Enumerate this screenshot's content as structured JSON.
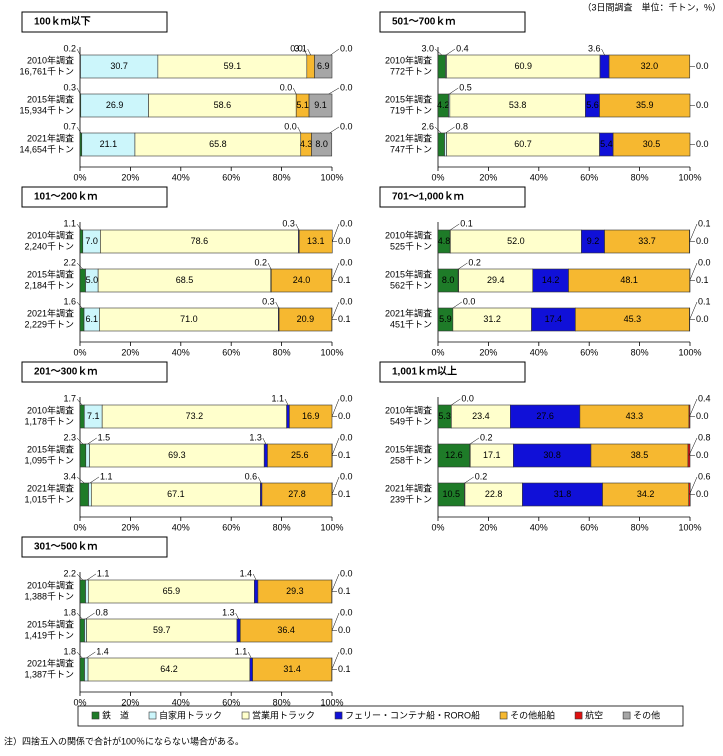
{
  "units_note": "（3日間調査　単位：千トン，%）",
  "footnote": "注）四捨五入の関係で合計が100％にならない場合がある。",
  "chart_data": [
    {
      "type": "bar",
      "horizontal": true,
      "stacked": true,
      "title": "100ｋｍ以下",
      "categories": [
        "2010年調査",
        "2015年調査",
        "2021年調査"
      ],
      "sublabels": [
        "16,761千トン",
        "15,934千トン",
        "14,654千トン"
      ],
      "xlim": [
        0,
        100
      ],
      "xticks": [
        {
          "value": 0,
          "label": "0%"
        },
        {
          "value": 20,
          "label": "20%"
        },
        {
          "value": 40,
          "label": "40%"
        },
        {
          "value": 60,
          "label": "60%"
        },
        {
          "value": 80,
          "label": "80%"
        },
        {
          "value": 100,
          "label": "100%"
        }
      ],
      "series": [
        {
          "name": "鉄　道",
          "color": "#1e7b28",
          "values": [
            0.2,
            0.3,
            0.7
          ],
          "value_labels": [
            "0.2",
            "0.3",
            "0.7"
          ]
        },
        {
          "name": "自家用トラック",
          "color": "#ccf6fb",
          "values": [
            30.7,
            26.9,
            21.1
          ],
          "value_labels": [
            "30.7",
            "26.9",
            "21.1"
          ]
        },
        {
          "name": "営業用トラック",
          "color": "#ffffcc",
          "values": [
            59.1,
            58.6,
            65.8
          ],
          "value_labels": [
            "59.1",
            "58.6",
            "65.8"
          ]
        },
        {
          "name": "フェリー・コンテナ船・RORO船",
          "color": "#1010d8",
          "values": [
            0.0,
            0.0,
            0.0
          ],
          "value_labels": [
            "0.0",
            "0.0",
            "0.0"
          ]
        },
        {
          "name": "その他船舶",
          "color": "#f6b830",
          "values": [
            3.1,
            5.1,
            4.3
          ],
          "value_labels": [
            "3.1",
            "5.1",
            "4.3"
          ]
        },
        {
          "name": "航空",
          "color": "#e01010",
          "values": [
            0.0,
            0.0,
            0.0
          ],
          "value_labels": [
            "0.0",
            "0.0",
            "0.0"
          ]
        },
        {
          "name": "その他",
          "color": "#a6a6a6",
          "values": [
            6.9,
            9.1,
            8.0
          ],
          "value_labels": [
            "6.9",
            "9.1",
            "8.0"
          ]
        }
      ]
    },
    {
      "type": "bar",
      "horizontal": true,
      "stacked": true,
      "title": "501～700ｋｍ",
      "categories": [
        "2010年調査",
        "2015年調査",
        "2021年調査"
      ],
      "sublabels": [
        "772千トン",
        "719千トン",
        "747千トン"
      ],
      "xlim": [
        0,
        100
      ],
      "xticks": [
        {
          "value": 0,
          "label": "0%"
        },
        {
          "value": 20,
          "label": "20%"
        },
        {
          "value": 40,
          "label": "40%"
        },
        {
          "value": 60,
          "label": "60%"
        },
        {
          "value": 80,
          "label": "80%"
        },
        {
          "value": 100,
          "label": "100%"
        }
      ],
      "series": [
        {
          "name": "鉄　道",
          "color": "#1e7b28",
          "values": [
            3.0,
            4.2,
            2.6
          ],
          "value_labels": [
            "3.0",
            "4.2",
            "2.6"
          ]
        },
        {
          "name": "自家用トラック",
          "color": "#ccf6fb",
          "values": [
            0.4,
            0.5,
            0.8
          ],
          "value_labels": [
            "0.4",
            "0.5",
            "0.8"
          ]
        },
        {
          "name": "営業用トラック",
          "color": "#ffffcc",
          "values": [
            60.9,
            53.8,
            60.7
          ],
          "value_labels": [
            "60.9",
            "53.8",
            "60.7"
          ]
        },
        {
          "name": "フェリー・コンテナ船・RORO船",
          "color": "#1010d8",
          "values": [
            3.6,
            5.6,
            5.4
          ],
          "value_labels": [
            "3.6",
            "5.6",
            "5.4"
          ]
        },
        {
          "name": "その他船舶",
          "color": "#f6b830",
          "values": [
            32.0,
            35.9,
            30.5
          ],
          "value_labels": [
            "32.0",
            "35.9",
            "30.5"
          ]
        },
        {
          "name": "その他",
          "color": "#a6a6a6",
          "values": [
            0.0,
            0.0,
            0.0
          ],
          "value_labels": [
            "0.0",
            "0.0",
            "0.0"
          ]
        }
      ]
    },
    {
      "type": "bar",
      "horizontal": true,
      "stacked": true,
      "title": "101～200ｋｍ",
      "categories": [
        "2010年調査",
        "2015年調査",
        "2021年調査"
      ],
      "sublabels": [
        "2,240千トン",
        "2,184千トン",
        "2,229千トン"
      ],
      "xlim": [
        0,
        100
      ],
      "xticks": [
        {
          "value": 0,
          "label": "0%"
        },
        {
          "value": 20,
          "label": "20%"
        },
        {
          "value": 40,
          "label": "40%"
        },
        {
          "value": 60,
          "label": "60%"
        },
        {
          "value": 80,
          "label": "80%"
        },
        {
          "value": 100,
          "label": "100%"
        }
      ],
      "series": [
        {
          "name": "鉄　道",
          "color": "#1e7b28",
          "values": [
            1.1,
            2.2,
            1.6
          ],
          "value_labels": [
            "1.1",
            "2.2",
            "1.6"
          ]
        },
        {
          "name": "自家用トラック",
          "color": "#ccf6fb",
          "values": [
            7.0,
            5.0,
            6.1
          ],
          "value_labels": [
            "7.0",
            "5.0",
            "6.1"
          ]
        },
        {
          "name": "営業用トラック",
          "color": "#ffffcc",
          "values": [
            78.6,
            68.5,
            71.0
          ],
          "value_labels": [
            "78.6",
            "68.5",
            "71.0"
          ]
        },
        {
          "name": "フェリー・コンテナ船・RORO船",
          "color": "#1010d8",
          "values": [
            0.3,
            0.2,
            0.3
          ],
          "value_labels": [
            "0.3",
            "0.2",
            "0.3"
          ]
        },
        {
          "name": "その他船舶",
          "color": "#f6b830",
          "values": [
            13.1,
            24.0,
            20.9
          ],
          "value_labels": [
            "13.1",
            "24.0",
            "20.9"
          ]
        },
        {
          "name": "航空",
          "color": "#e01010",
          "values": [
            0.0,
            0.0,
            0.0
          ],
          "value_labels": [
            "0.0",
            "0.0",
            "0.0"
          ]
        },
        {
          "name": "その他",
          "color": "#a6a6a6",
          "values": [
            0.0,
            0.1,
            0.1
          ],
          "value_labels": [
            "0.0",
            "0.1",
            "0.1"
          ]
        }
      ]
    },
    {
      "type": "bar",
      "horizontal": true,
      "stacked": true,
      "title": "701～1,000ｋｍ",
      "categories": [
        "2010年調査",
        "2015年調査",
        "2021年調査"
      ],
      "sublabels": [
        "525千トン",
        "562千トン",
        "451千トン"
      ],
      "xlim": [
        0,
        100
      ],
      "xticks": [
        {
          "value": 0,
          "label": "0%"
        },
        {
          "value": 20,
          "label": "20%"
        },
        {
          "value": 40,
          "label": "40%"
        },
        {
          "value": 60,
          "label": "60%"
        },
        {
          "value": 80,
          "label": "80%"
        },
        {
          "value": 100,
          "label": "100%"
        }
      ],
      "series": [
        {
          "name": "鉄　道",
          "color": "#1e7b28",
          "values": [
            4.8,
            8.0,
            5.9
          ],
          "value_labels": [
            "4.8",
            "8.0",
            "5.9"
          ]
        },
        {
          "name": "自家用トラック",
          "color": "#ccf6fb",
          "values": [
            0.1,
            0.2,
            0.0
          ],
          "value_labels": [
            "0.1",
            "0.2",
            "0.0"
          ]
        },
        {
          "name": "営業用トラック",
          "color": "#ffffcc",
          "values": [
            52.0,
            29.4,
            31.2
          ],
          "value_labels": [
            "52.0",
            "29.4",
            "31.2"
          ]
        },
        {
          "name": "フェリー・コンテナ船・RORO船",
          "color": "#1010d8",
          "values": [
            9.2,
            14.2,
            17.4
          ],
          "value_labels": [
            "9.2",
            "14.2",
            "17.4"
          ]
        },
        {
          "name": "その他船舶",
          "color": "#f6b830",
          "values": [
            33.7,
            48.1,
            45.3
          ],
          "value_labels": [
            "33.7",
            "48.1",
            "45.3"
          ]
        },
        {
          "name": "航空",
          "color": "#e01010",
          "values": [
            0.1,
            0.0,
            0.1
          ],
          "value_labels": [
            "0.1",
            "0.0",
            "0.1"
          ]
        },
        {
          "name": "その他",
          "color": "#a6a6a6",
          "values": [
            0.0,
            0.1,
            0.0
          ],
          "value_labels": [
            "0.0",
            "0.1",
            "0.0"
          ]
        }
      ]
    },
    {
      "type": "bar",
      "horizontal": true,
      "stacked": true,
      "title": "201～300ｋｍ",
      "categories": [
        "2010年調査",
        "2015年調査",
        "2021年調査"
      ],
      "sublabels": [
        "1,178千トン",
        "1,095千トン",
        "1,015千トン"
      ],
      "xlim": [
        0,
        100
      ],
      "xticks": [
        {
          "value": 0,
          "label": "0%"
        },
        {
          "value": 20,
          "label": "20%"
        },
        {
          "value": 40,
          "label": "40%"
        },
        {
          "value": 60,
          "label": "60%"
        },
        {
          "value": 80,
          "label": "80%"
        },
        {
          "value": 100,
          "label": "100%"
        }
      ],
      "series": [
        {
          "name": "鉄　道",
          "color": "#1e7b28",
          "values": [
            1.7,
            2.3,
            3.4
          ],
          "value_labels": [
            "1.7",
            "2.3",
            "3.4"
          ]
        },
        {
          "name": "自家用トラック",
          "color": "#ccf6fb",
          "values": [
            7.1,
            1.5,
            1.1
          ],
          "value_labels": [
            "7.1",
            "1.5",
            "1.1"
          ]
        },
        {
          "name": "営業用トラック",
          "color": "#ffffcc",
          "values": [
            73.2,
            69.3,
            67.1
          ],
          "value_labels": [
            "73.2",
            "69.3",
            "67.1"
          ]
        },
        {
          "name": "フェリー・コンテナ船・RORO船",
          "color": "#1010d8",
          "values": [
            1.1,
            1.3,
            0.6
          ],
          "value_labels": [
            "1.1",
            "1.3",
            "0.6"
          ]
        },
        {
          "name": "その他船舶",
          "color": "#f6b830",
          "values": [
            16.9,
            25.6,
            27.8
          ],
          "value_labels": [
            "16.9",
            "25.6",
            "27.8"
          ]
        },
        {
          "name": "航空",
          "color": "#e01010",
          "values": [
            0.0,
            0.0,
            0.0
          ],
          "value_labels": [
            "0.0",
            "0.0",
            "0.0"
          ]
        },
        {
          "name": "その他",
          "color": "#a6a6a6",
          "values": [
            0.0,
            0.1,
            0.1
          ],
          "value_labels": [
            "0.0",
            "0.1",
            "0.1"
          ]
        }
      ]
    },
    {
      "type": "bar",
      "horizontal": true,
      "stacked": true,
      "title": "1,001ｋｍ以上",
      "categories": [
        "2010年調査",
        "2015年調査",
        "2021年調査"
      ],
      "sublabels": [
        "549千トン",
        "258千トン",
        "239千トン"
      ],
      "xlim": [
        0,
        100
      ],
      "xticks": [
        {
          "value": 0,
          "label": "0%"
        },
        {
          "value": 20,
          "label": "20%"
        },
        {
          "value": 40,
          "label": "40%"
        },
        {
          "value": 60,
          "label": "60%"
        },
        {
          "value": 80,
          "label": "80%"
        },
        {
          "value": 100,
          "label": "100%"
        }
      ],
      "series": [
        {
          "name": "鉄　道",
          "color": "#1e7b28",
          "values": [
            5.3,
            12.6,
            10.5
          ],
          "value_labels": [
            "5.3",
            "12.6",
            "10.5"
          ]
        },
        {
          "name": "自家用トラック",
          "color": "#ccf6fb",
          "values": [
            0.0,
            0.2,
            0.2
          ],
          "value_labels": [
            "0.0",
            "0.2",
            "0.2"
          ]
        },
        {
          "name": "営業用トラック",
          "color": "#ffffcc",
          "values": [
            23.4,
            17.1,
            22.8
          ],
          "value_labels": [
            "23.4",
            "17.1",
            "22.8"
          ]
        },
        {
          "name": "フェリー・コンテナ船・RORO船",
          "color": "#1010d8",
          "values": [
            27.6,
            30.8,
            31.8
          ],
          "value_labels": [
            "27.6",
            "30.8",
            "31.8"
          ]
        },
        {
          "name": "その他船舶",
          "color": "#f6b830",
          "values": [
            43.3,
            38.5,
            34.2
          ],
          "value_labels": [
            "43.3",
            "38.5",
            "34.2"
          ]
        },
        {
          "name": "航空",
          "color": "#e01010",
          "values": [
            0.4,
            0.8,
            0.6
          ],
          "value_labels": [
            "0.4",
            "0.8",
            "0.6"
          ]
        },
        {
          "name": "その他",
          "color": "#a6a6a6",
          "values": [
            0.0,
            0.0,
            0.0
          ],
          "value_labels": [
            "0.0",
            "0.0",
            "0.0"
          ]
        }
      ]
    },
    {
      "type": "bar",
      "horizontal": true,
      "stacked": true,
      "title": "301～500ｋｍ",
      "categories": [
        "2010年調査",
        "2015年調査",
        "2021年調査"
      ],
      "sublabels": [
        "1,388千トン",
        "1,419千トン",
        "1,387千トン"
      ],
      "xlim": [
        0,
        100
      ],
      "xticks": [
        {
          "value": 0,
          "label": "0%"
        },
        {
          "value": 20,
          "label": "20%"
        },
        {
          "value": 40,
          "label": "40%"
        },
        {
          "value": 60,
          "label": "60%"
        },
        {
          "value": 80,
          "label": "80%"
        },
        {
          "value": 100,
          "label": "100%"
        }
      ],
      "series": [
        {
          "name": "鉄　道",
          "color": "#1e7b28",
          "values": [
            2.2,
            1.8,
            1.8
          ],
          "value_labels": [
            "2.2",
            "1.8",
            "1.8"
          ]
        },
        {
          "name": "自家用トラック",
          "color": "#ccf6fb",
          "values": [
            1.1,
            0.8,
            1.4
          ],
          "value_labels": [
            "1.1",
            "0.8",
            "1.4"
          ]
        },
        {
          "name": "営業用トラック",
          "color": "#ffffcc",
          "values": [
            65.9,
            59.7,
            64.2
          ],
          "value_labels": [
            "65.9",
            "59.7",
            "64.2"
          ]
        },
        {
          "name": "フェリー・コンテナ船・RORO船",
          "color": "#1010d8",
          "values": [
            1.4,
            1.3,
            1.1
          ],
          "value_labels": [
            "1.4",
            "1.3",
            "1.1"
          ]
        },
        {
          "name": "その他船舶",
          "color": "#f6b830",
          "values": [
            29.3,
            36.4,
            31.4
          ],
          "value_labels": [
            "29.3",
            "36.4",
            "31.4"
          ]
        },
        {
          "name": "航空",
          "color": "#e01010",
          "values": [
            0.0,
            0.0,
            0.0
          ],
          "value_labels": [
            "0.0",
            "0.0",
            "0.0"
          ]
        },
        {
          "name": "その他",
          "color": "#a6a6a6",
          "values": [
            0.1,
            0.0,
            0.1
          ],
          "value_labels": [
            "0.1",
            "0.0",
            "0.1"
          ]
        }
      ]
    }
  ]
}
